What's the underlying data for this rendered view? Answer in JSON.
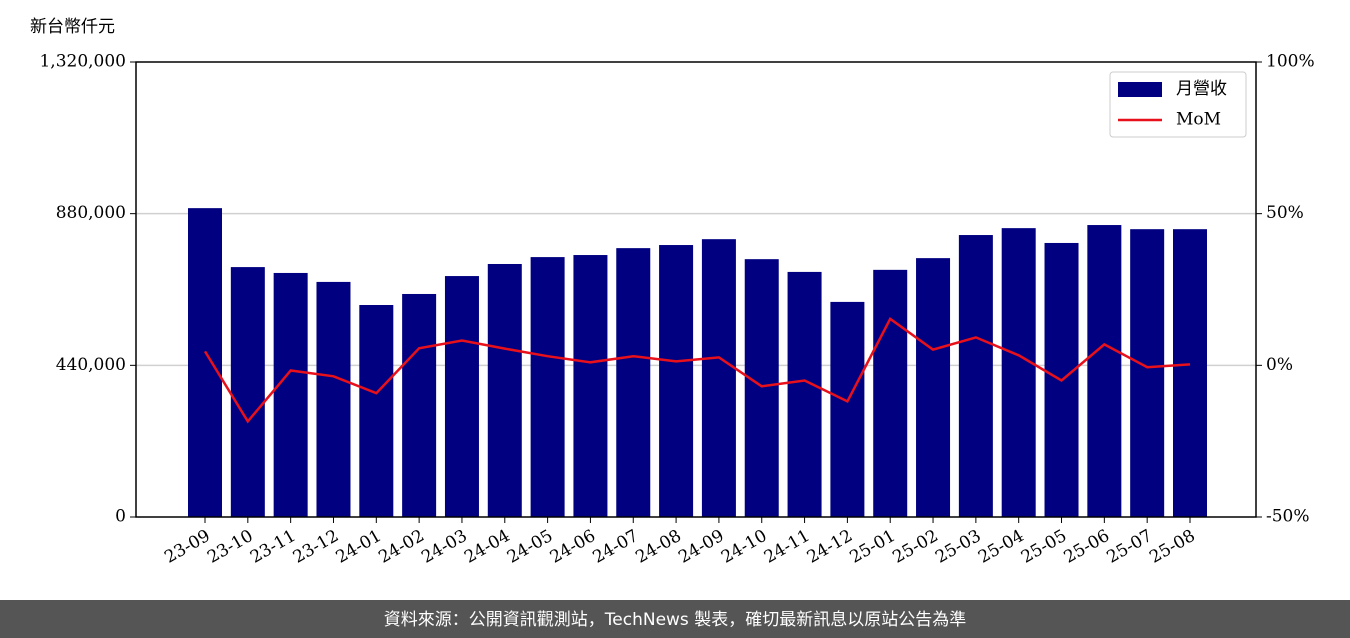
{
  "chart_data": {
    "type": "bar_line",
    "y_label": "新台幣仟元",
    "categories": [
      "23-09",
      "23-10",
      "23-11",
      "23-12",
      "24-01",
      "24-02",
      "24-03",
      "24-04",
      "24-05",
      "24-06",
      "24-07",
      "24-08",
      "24-09",
      "24-10",
      "24-11",
      "24-12",
      "25-01",
      "25-02",
      "25-03",
      "25-04",
      "25-05",
      "25-06",
      "25-07",
      "25-08"
    ],
    "series": [
      {
        "name": "月營收",
        "type": "bar",
        "color": "#000080",
        "values": [
          896000,
          725000,
          708000,
          682000,
          615000,
          647000,
          699000,
          734000,
          754000,
          760000,
          780000,
          789000,
          806000,
          748000,
          711000,
          624000,
          717000,
          751000,
          818000,
          838000,
          795000,
          847000,
          835000,
          835000
        ]
      },
      {
        "name": "MoM",
        "type": "line",
        "color": "#e8101a",
        "axis": "y2",
        "values": [
          4.6,
          -18.5,
          -1.7,
          -3.6,
          -9.2,
          5.6,
          8.2,
          5.5,
          3,
          1,
          3,
          1.3,
          2.6,
          -6.9,
          -5,
          -11.9,
          15.3,
          5.2,
          9.2,
          3.3,
          -5,
          6.9,
          -0.6,
          0.3
        ]
      }
    ],
    "ylim": [
      0,
      1320000
    ],
    "yticks": [
      0,
      {
        "value": 440000,
        "label": "440,000"
      },
      {
        "value": 880000,
        "label": "880,000"
      },
      {
        "value": 1320000,
        "label": "1,320,000"
      }
    ],
    "y2lim": [
      -50,
      100
    ],
    "y2ticks": [
      {
        "value": -50,
        "label": "-50%"
      },
      {
        "value": 0,
        "label": "0%"
      },
      {
        "value": 50,
        "label": "50%"
      },
      {
        "value": 100,
        "label": "100%"
      }
    ],
    "grid": true,
    "legend": "upper right",
    "footer": "資料來源：公開資訊觀測站，TechNews 製表，確切最新訊息以原站公告為準"
  }
}
